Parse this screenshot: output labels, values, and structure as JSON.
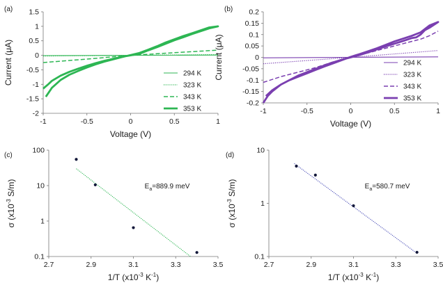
{
  "chart_data": [
    {
      "panel": "(a)",
      "type": "line",
      "xlabel": "Voltage (V)",
      "ylabel": "Current (μA)",
      "xlim": [
        -1,
        1
      ],
      "ylim": [
        -2,
        1.5
      ],
      "xticks": [
        -1,
        -0.5,
        0,
        0.5,
        1
      ],
      "xtick_labels": [
        "-1",
        "-0.5",
        "0",
        "0.5",
        "1"
      ],
      "yticks": [
        -2,
        -1.5,
        -1,
        -0.5,
        0,
        0.5,
        1,
        1.5
      ],
      "ytick_labels": [
        "-2",
        "-1.5",
        "-1",
        "-0.5",
        "0",
        "0.5",
        "1",
        "1.5"
      ],
      "grid": false,
      "legend_position": "bottom-right",
      "color": "#2db653",
      "series": [
        {
          "name": "294 K",
          "style": "thin",
          "x": [
            -1,
            1
          ],
          "y": [
            -0.01,
            0.01
          ]
        },
        {
          "name": "323 K",
          "style": "dotted",
          "x": [
            -1,
            1
          ],
          "y": [
            -0.025,
            0.025
          ]
        },
        {
          "name": "343 K",
          "style": "dashed",
          "x": [
            -1,
            -0.5,
            0,
            0.5,
            1
          ],
          "y": [
            -0.25,
            -0.13,
            0,
            0.09,
            0.18
          ]
        },
        {
          "name": "353 K",
          "style": "thick",
          "x": [
            -1,
            -0.95,
            -0.9,
            -0.8,
            -0.7,
            -0.6,
            -0.5,
            -0.4,
            -0.3,
            -0.2,
            -0.1,
            0,
            0.1,
            0.2,
            0.3,
            0.4,
            0.5,
            0.6,
            0.7,
            0.8,
            0.9,
            1,
            0.9,
            0.8,
            0.7,
            0.6,
            0.5,
            0.4,
            0.3,
            0.2,
            0.1,
            0,
            -0.1,
            -0.2,
            -0.3,
            -0.4,
            -0.5,
            -0.6,
            -0.7,
            -0.8,
            -0.9,
            -0.97
          ],
          "y": [
            -1.15,
            -1.02,
            -0.88,
            -0.7,
            -0.57,
            -0.46,
            -0.36,
            -0.27,
            -0.19,
            -0.12,
            -0.05,
            0,
            0.05,
            0.17,
            0.28,
            0.4,
            0.52,
            0.62,
            0.73,
            0.83,
            0.93,
            1.0,
            0.96,
            0.86,
            0.76,
            0.66,
            0.55,
            0.44,
            0.31,
            0.19,
            0.08,
            0.01,
            -0.06,
            -0.14,
            -0.22,
            -0.31,
            -0.42,
            -0.54,
            -0.67,
            -0.85,
            -1.12,
            -1.43
          ]
        }
      ]
    },
    {
      "panel": "(b)",
      "type": "line",
      "xlabel": "Voltage (V)",
      "ylabel": "Current (μA)",
      "xlim": [
        -1,
        1
      ],
      "ylim": [
        -0.2,
        0.2
      ],
      "xticks": [
        -1,
        -0.5,
        0,
        0.5,
        1
      ],
      "xtick_labels": [
        "-1",
        "-0.5",
        "0",
        "0.5",
        "1"
      ],
      "yticks": [
        -0.2,
        -0.15,
        -0.1,
        -0.05,
        0,
        0.05,
        0.1,
        0.15,
        0.2
      ],
      "ytick_labels": [
        "-0.2",
        "-0.15",
        "-0.1",
        "-0.05",
        "0",
        "0.05",
        "0.1",
        "0.15",
        "0.2"
      ],
      "grid": false,
      "legend_position": "bottom-right",
      "color": "#7a3fb0",
      "series": [
        {
          "name": "294 K",
          "style": "thin",
          "x": [
            -1,
            1
          ],
          "y": [
            -0.002,
            0.002
          ]
        },
        {
          "name": "323 K",
          "style": "dotted",
          "x": [
            -1,
            -0.5,
            0,
            0.5,
            1
          ],
          "y": [
            -0.028,
            -0.014,
            0,
            0.015,
            0.03
          ]
        },
        {
          "name": "343 K",
          "style": "dashed",
          "x": [
            -1,
            -0.8,
            -0.6,
            -0.4,
            -0.2,
            0,
            0.2,
            0.4,
            0.6,
            0.8,
            0.9,
            1
          ],
          "y": [
            -0.11,
            -0.085,
            -0.065,
            -0.045,
            -0.02,
            0,
            0.02,
            0.04,
            0.06,
            0.08,
            0.095,
            0.115
          ]
        },
        {
          "name": "353 K",
          "style": "thick",
          "x": [
            -1,
            -0.95,
            -0.9,
            -0.8,
            -0.7,
            -0.6,
            -0.5,
            -0.4,
            -0.3,
            -0.2,
            -0.1,
            0,
            0.1,
            0.2,
            0.3,
            0.4,
            0.5,
            0.6,
            0.7,
            0.75,
            0.8,
            0.85,
            0.9,
            1,
            0.9,
            0.8,
            0.7,
            0.6,
            0.5,
            0.4,
            0.3,
            0.2,
            0.1,
            0,
            -0.1,
            -0.2,
            -0.3,
            -0.4,
            -0.5,
            -0.6,
            -0.7,
            -0.8,
            -0.9,
            -0.97
          ],
          "y": [
            -0.2,
            -0.17,
            -0.15,
            -0.12,
            -0.1,
            -0.08,
            -0.065,
            -0.05,
            -0.035,
            -0.022,
            -0.01,
            0,
            0.01,
            0.022,
            0.035,
            0.048,
            0.06,
            0.072,
            0.085,
            0.088,
            0.1,
            0.12,
            0.13,
            0.155,
            0.14,
            0.11,
            0.095,
            0.082,
            0.07,
            0.055,
            0.04,
            0.027,
            0.014,
            0.002,
            -0.012,
            -0.026,
            -0.04,
            -0.055,
            -0.07,
            -0.085,
            -0.1,
            -0.12,
            -0.145,
            -0.17
          ]
        }
      ]
    },
    {
      "panel": "(c)",
      "type": "scatter",
      "xlabel": "1/T (x10",
      "xlabel_sup1": "-3",
      "xlabel_mid": " K",
      "xlabel_sup2": "-1",
      "xlabel_end": ")",
      "ylabel": "σ (x10",
      "ylabel_sup": "-3",
      "ylabel_end": " S/m)",
      "xlim": [
        2.7,
        3.5
      ],
      "ylim": [
        0.1,
        100
      ],
      "yscale": "log",
      "xticks": [
        2.7,
        2.9,
        3.1,
        3.3,
        3.5
      ],
      "xtick_labels": [
        "2.7",
        "2.9",
        "3.1",
        "3.3",
        "3.5"
      ],
      "yticks": [
        0.1,
        1,
        10,
        100
      ],
      "ytick_labels": [
        "0.1",
        "1",
        "10",
        "100"
      ],
      "grid": false,
      "color": "#2db653",
      "annotation_main": "E",
      "annotation_sub": "a",
      "annotation_rest": "=889.9 meV",
      "x": [
        2.83,
        2.92,
        3.1,
        3.4
      ],
      "y": [
        55,
        10.5,
        0.65,
        0.13
      ],
      "fit": {
        "x": [
          2.83,
          3.37
        ],
        "y": [
          30,
          0.1
        ]
      }
    },
    {
      "panel": "(d)",
      "type": "scatter",
      "xlabel": "1/T (x10",
      "xlabel_sup1": "-3",
      "xlabel_mid": " K",
      "xlabel_sup2": "-1",
      "xlabel_end": ")",
      "ylabel": "σ (x10",
      "ylabel_sup": "-3",
      "ylabel_end": " S/m)",
      "xlim": [
        2.7,
        3.5
      ],
      "ylim": [
        0.1,
        10
      ],
      "yscale": "log",
      "xticks": [
        2.7,
        2.9,
        3.1,
        3.3,
        3.5
      ],
      "xtick_labels": [
        "2.7",
        "2.9",
        "3.1",
        "3.3",
        "3.5"
      ],
      "yticks": [
        0.1,
        1,
        10
      ],
      "ytick_labels": [
        "0.1",
        "1",
        "10"
      ],
      "grid": false,
      "color": "#4b4fb8",
      "annotation_main": "E",
      "annotation_sub": "a",
      "annotation_rest": "=580.7 meV",
      "x": [
        2.83,
        2.92,
        3.1,
        3.4
      ],
      "y": [
        5.0,
        3.4,
        0.9,
        0.12
      ],
      "fit": {
        "x": [
          2.82,
          3.4
        ],
        "y": [
          5.6,
          0.115
        ]
      }
    }
  ]
}
